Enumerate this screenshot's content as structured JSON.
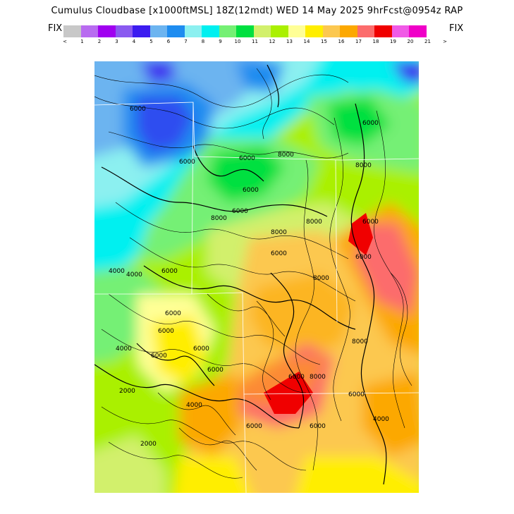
{
  "title": "Cumulus Cloudbase [x1000ftMSL] 18Z(12mdt) WED 14 May 2025 9hrFcst@0954z RAP",
  "fix_left": "FIX",
  "fix_right": "FIX",
  "legend": {
    "colors": [
      "#c8c8c8",
      "#b86cf0",
      "#a000f0",
      "#8a5af0",
      "#3c1cf0",
      "#6cb4f0",
      "#1e8cf0",
      "#8cf0f0",
      "#00f0f0",
      "#74f074",
      "#00e040",
      "#d2f06c",
      "#aaf000",
      "#ffff96",
      "#ffee00",
      "#fcc850",
      "#fca800",
      "#fc6c6c",
      "#f00000",
      "#f05ae6",
      "#f000c8"
    ],
    "tick_labels": [
      "<",
      "1",
      "2",
      "3",
      "4",
      "5",
      "6",
      "7",
      "8",
      "9",
      "10",
      "11",
      "12",
      "13",
      "14",
      "15",
      "16",
      "17",
      "18",
      "19",
      "20",
      "21",
      ">"
    ]
  },
  "contour_labels": [
    "6000",
    "6000",
    "6000",
    "8000",
    "6000",
    "6000",
    "6000",
    "8000",
    "6000",
    "4000",
    "6000",
    "8000",
    "6000",
    "8000",
    "8000",
    "6000",
    "6000",
    "8000",
    "4000",
    "6000",
    "6000",
    "6000",
    "4000",
    "6000",
    "6000",
    "2000",
    "8000",
    "4000",
    "2000",
    "6000",
    "6000",
    "6000",
    "4000",
    "8000"
  ]
}
